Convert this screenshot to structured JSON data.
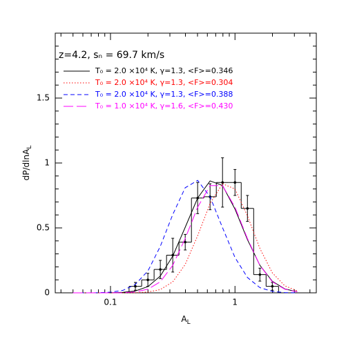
{
  "chart_data": {
    "type": "line",
    "annotation": "z=4.2, sₙ = 69.7 km/s",
    "xlabel": {
      "text": "A",
      "sub": "L"
    },
    "ylabel": {
      "text": "dP/dlnA",
      "sub": "L"
    },
    "xscale": "log",
    "xlim": [
      0.036,
      4.5
    ],
    "ylim": [
      0,
      2
    ],
    "xticks": [
      0.1,
      1
    ],
    "xminorticks": [
      0.04,
      0.05,
      0.06,
      0.07,
      0.08,
      0.09,
      0.2,
      0.3,
      0.4,
      0.5,
      0.6,
      0.7,
      0.8,
      0.9,
      2,
      3,
      4
    ],
    "yticks": [
      0,
      0.5,
      1,
      1.5
    ],
    "yminorticks": [
      0.1,
      0.2,
      0.3,
      0.4,
      0.6,
      0.7,
      0.8,
      0.9,
      1.1,
      1.2,
      1.3,
      1.4,
      1.6,
      1.7,
      1.8,
      1.9
    ],
    "legend": "upper left",
    "x": [
      0.05,
      0.063,
      0.079,
      0.1,
      0.126,
      0.158,
      0.2,
      0.251,
      0.316,
      0.398,
      0.501,
      0.631,
      0.794,
      1,
      1.259,
      1.585,
      1.995,
      2.512,
      3.162
    ],
    "series": [
      {
        "name": "T₀ = 2.0 ×10⁴ K, γ=1.3, <F>=0.346",
        "color": "#000000",
        "dash": "solid",
        "values": [
          0,
          0,
          0,
          0.0007,
          0.004,
          0.014,
          0.048,
          0.129,
          0.282,
          0.504,
          0.73,
          0.862,
          0.827,
          0.645,
          0.41,
          0.212,
          0.089,
          0.03,
          0.008
        ]
      },
      {
        "name": "T₀ = 2.0 ×10⁴ K, γ=1.3, <F>=0.304",
        "color": "#ff0000",
        "dash": "dotted",
        "values": [
          0,
          0,
          0,
          0,
          0.0002,
          0.001,
          0.006,
          0.025,
          0.084,
          0.218,
          0.439,
          0.688,
          0.84,
          0.8,
          0.593,
          0.342,
          0.154,
          0.054,
          0.015
        ]
      },
      {
        "name": "T₀ = 2.0 ×10⁴ K, γ=1.3, <F>=0.388",
        "color": "#0000ff",
        "dash": "dashed",
        "values": [
          0,
          0.0001,
          0.001,
          0.005,
          0.019,
          0.064,
          0.169,
          0.357,
          0.602,
          0.809,
          0.866,
          0.739,
          0.502,
          0.272,
          0.118,
          0.04,
          0.011,
          0.002,
          0
        ]
      },
      {
        "name": "T₀ = 1.0 ×10⁴ K, γ=1.6, <F>=0.430",
        "color": "#ff00ff",
        "dash": "longdash",
        "values": [
          0,
          0,
          0,
          0.0002,
          0.001,
          0.007,
          0.028,
          0.085,
          0.211,
          0.418,
          0.659,
          0.826,
          0.826,
          0.659,
          0.418,
          0.211,
          0.085,
          0.028,
          0.007
        ]
      }
    ],
    "histogram": {
      "color": "#000000",
      "bins": [
        0.141,
        0.178,
        0.224,
        0.282,
        0.355,
        0.447,
        0.562,
        0.708,
        0.891,
        1.122,
        1.413,
        1.778,
        2.239
      ],
      "values": [
        0.05,
        0.1,
        0.18,
        0.29,
        0.39,
        0.73,
        0.74,
        0.85,
        0.85,
        0.65,
        0.14,
        0.05
      ],
      "errors": [
        0.03,
        0.05,
        0.07,
        0.13,
        0.06,
        0.12,
        0.1,
        0.19,
        0.1,
        0.1,
        0.05,
        0.03
      ]
    }
  }
}
